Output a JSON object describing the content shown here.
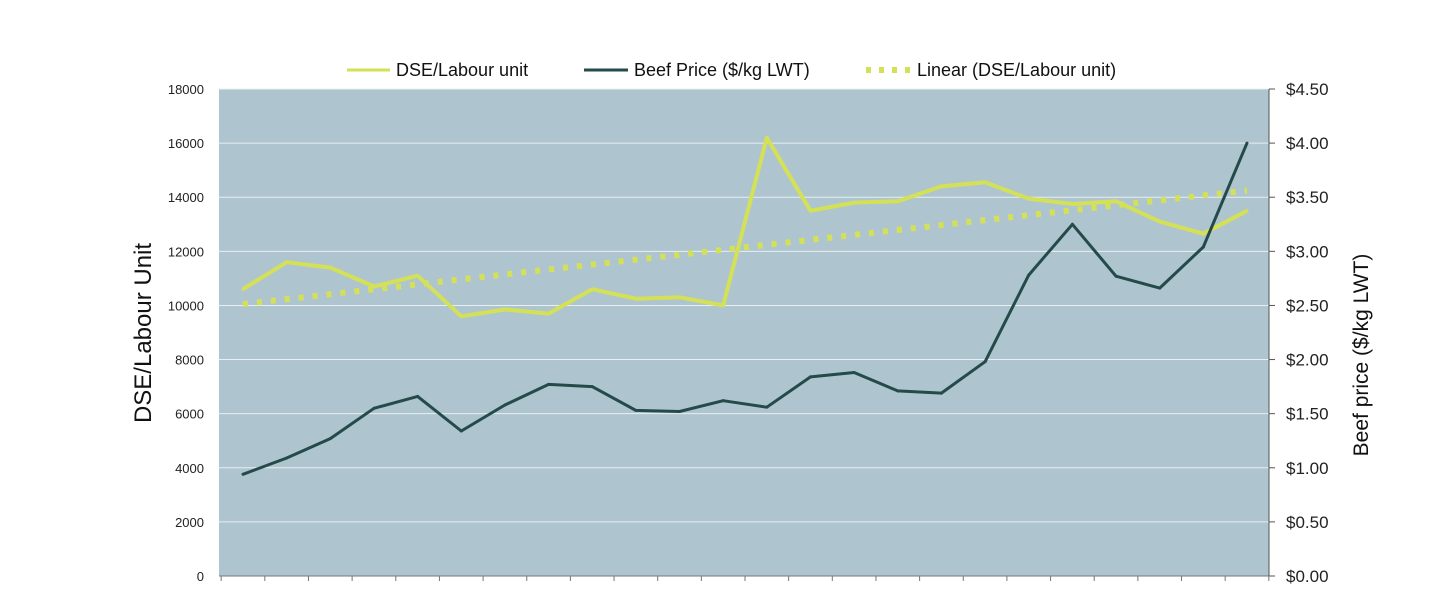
{
  "chart_data": {
    "type": "line",
    "title": "",
    "xlabel": "",
    "ylabel": "DSE/Labour Unit",
    "y2label": "Beef price ($/kg LWT)",
    "ylim": [
      0,
      18000
    ],
    "y2lim": [
      0,
      4.5
    ],
    "yticks": [
      "0",
      "2000",
      "4000",
      "6000",
      "8000",
      "10000",
      "12000",
      "14000",
      "16000",
      "18000"
    ],
    "y2ticks": [
      "$0.00",
      "$0.50",
      "$1.00",
      "$1.50",
      "$2.00",
      "$2.50",
      "$3.00",
      "$3.50",
      "$4.00",
      "$4.50"
    ],
    "grid": true,
    "legend": "top",
    "plot_background": "#aec5cf",
    "series": [
      {
        "name": "DSE/Labour unit",
        "axis": "left",
        "color": "#d4e157",
        "values": [
          10600,
          11600,
          11400,
          10700,
          11100,
          9600,
          9850,
          9700,
          10600,
          10250,
          10300,
          10000,
          16200,
          13500,
          13800,
          13850,
          14400,
          14550,
          13950,
          13750,
          13850,
          13100,
          12650,
          13500
        ]
      },
      {
        "name": "Beef Price ($/kg LWT)",
        "axis": "right",
        "color": "#244b4a",
        "values": [
          0.94,
          1.09,
          1.27,
          1.55,
          1.66,
          1.34,
          1.58,
          1.77,
          1.75,
          1.53,
          1.52,
          1.62,
          1.56,
          1.84,
          1.88,
          1.71,
          1.69,
          1.98,
          2.78,
          3.25,
          2.77,
          2.66,
          3.04,
          4.0
        ]
      },
      {
        "name": "Linear (DSE/Labour unit)",
        "axis": "left",
        "color": "#d4e157",
        "style": "dotted",
        "trend_start": 10050,
        "trend_end": 14250
      }
    ]
  }
}
